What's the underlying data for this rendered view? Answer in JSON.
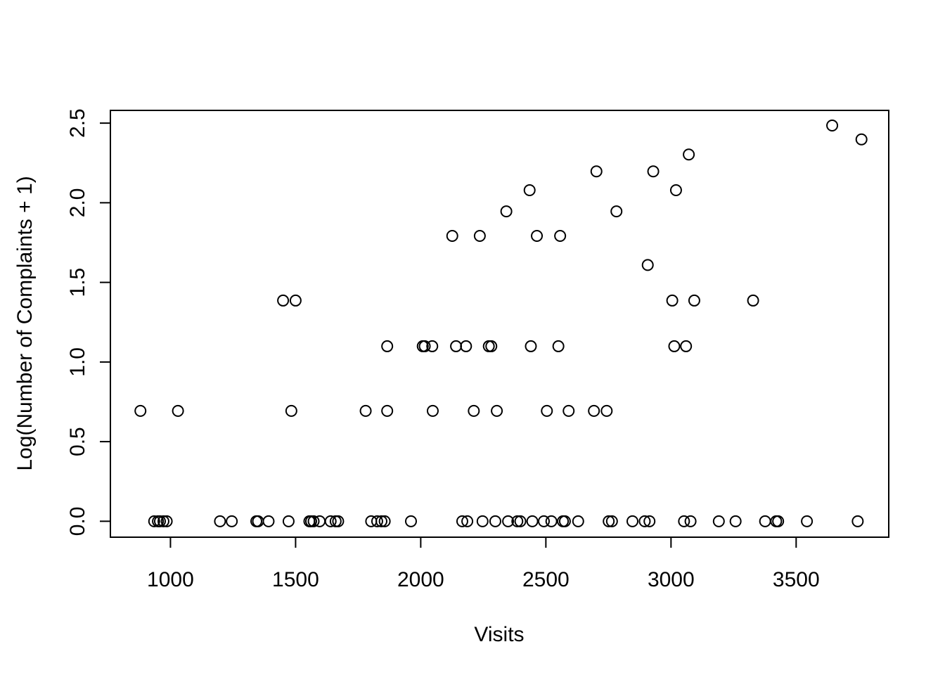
{
  "chart_data": {
    "type": "scatter",
    "title": "",
    "xlabel": "Visits",
    "ylabel": "Log(Number of Complaints + 1)",
    "xlim": [
      760,
      3870
    ],
    "ylim": [
      -0.1,
      2.58
    ],
    "xticks": [
      1000,
      1500,
      2000,
      2500,
      3000,
      3500
    ],
    "yticks": [
      0.0,
      0.5,
      1.0,
      1.5,
      2.0,
      2.5
    ],
    "xtick_labels": [
      "1000",
      "1500",
      "2000",
      "2500",
      "3000",
      "3500"
    ],
    "ytick_labels": [
      "0.0",
      "0.5",
      "1.0",
      "1.5",
      "2.0",
      "2.5"
    ],
    "marker": "open-circle",
    "color": "#000000",
    "grid": false,
    "legend": "none",
    "points": [
      {
        "x": 880,
        "y": 0.693
      },
      {
        "x": 1030,
        "y": 0.693
      },
      {
        "x": 1483,
        "y": 0.693
      },
      {
        "x": 1780,
        "y": 0.693
      },
      {
        "x": 1866,
        "y": 0.693
      },
      {
        "x": 2048,
        "y": 0.693
      },
      {
        "x": 2212,
        "y": 0.693
      },
      {
        "x": 2304,
        "y": 0.693
      },
      {
        "x": 2504,
        "y": 0.693
      },
      {
        "x": 2591,
        "y": 0.693
      },
      {
        "x": 2692,
        "y": 0.693
      },
      {
        "x": 2743,
        "y": 0.693
      },
      {
        "x": 1450,
        "y": 1.386
      },
      {
        "x": 1500,
        "y": 1.386
      },
      {
        "x": 3005,
        "y": 1.386
      },
      {
        "x": 3093,
        "y": 1.386
      },
      {
        "x": 3328,
        "y": 1.386
      },
      {
        "x": 1866,
        "y": 1.099
      },
      {
        "x": 2008,
        "y": 1.099
      },
      {
        "x": 2016,
        "y": 1.099
      },
      {
        "x": 2046,
        "y": 1.099
      },
      {
        "x": 2141,
        "y": 1.099
      },
      {
        "x": 2181,
        "y": 1.099
      },
      {
        "x": 2272,
        "y": 1.099
      },
      {
        "x": 2282,
        "y": 1.099
      },
      {
        "x": 2440,
        "y": 1.099
      },
      {
        "x": 2550,
        "y": 1.099
      },
      {
        "x": 3013,
        "y": 1.099
      },
      {
        "x": 3060,
        "y": 1.099
      },
      {
        "x": 2126,
        "y": 1.792
      },
      {
        "x": 2236,
        "y": 1.792
      },
      {
        "x": 2464,
        "y": 1.792
      },
      {
        "x": 2557,
        "y": 1.792
      },
      {
        "x": 2342,
        "y": 1.946
      },
      {
        "x": 2782,
        "y": 1.946
      },
      {
        "x": 2435,
        "y": 2.079
      },
      {
        "x": 3020,
        "y": 2.079
      },
      {
        "x": 2702,
        "y": 2.197
      },
      {
        "x": 2929,
        "y": 2.197
      },
      {
        "x": 2907,
        "y": 1.609
      },
      {
        "x": 3071,
        "y": 2.303
      },
      {
        "x": 3644,
        "y": 2.485
      },
      {
        "x": 3761,
        "y": 2.398
      },
      {
        "x": 935,
        "y": 0
      },
      {
        "x": 950,
        "y": 0
      },
      {
        "x": 958,
        "y": 0
      },
      {
        "x": 972,
        "y": 0
      },
      {
        "x": 985,
        "y": 0
      },
      {
        "x": 1198,
        "y": 0
      },
      {
        "x": 1245,
        "y": 0
      },
      {
        "x": 1343,
        "y": 0
      },
      {
        "x": 1350,
        "y": 0
      },
      {
        "x": 1392,
        "y": 0
      },
      {
        "x": 1472,
        "y": 0
      },
      {
        "x": 1555,
        "y": 0
      },
      {
        "x": 1562,
        "y": 0
      },
      {
        "x": 1572,
        "y": 0
      },
      {
        "x": 1596,
        "y": 0
      },
      {
        "x": 1640,
        "y": 0
      },
      {
        "x": 1660,
        "y": 0
      },
      {
        "x": 1670,
        "y": 0
      },
      {
        "x": 1802,
        "y": 0
      },
      {
        "x": 1826,
        "y": 0
      },
      {
        "x": 1843,
        "y": 0
      },
      {
        "x": 1856,
        "y": 0
      },
      {
        "x": 1961,
        "y": 0
      },
      {
        "x": 2166,
        "y": 0
      },
      {
        "x": 2186,
        "y": 0
      },
      {
        "x": 2247,
        "y": 0
      },
      {
        "x": 2298,
        "y": 0
      },
      {
        "x": 2349,
        "y": 0
      },
      {
        "x": 2386,
        "y": 0
      },
      {
        "x": 2398,
        "y": 0
      },
      {
        "x": 2446,
        "y": 0
      },
      {
        "x": 2492,
        "y": 0
      },
      {
        "x": 2522,
        "y": 0
      },
      {
        "x": 2568,
        "y": 0
      },
      {
        "x": 2576,
        "y": 0
      },
      {
        "x": 2629,
        "y": 0
      },
      {
        "x": 2751,
        "y": 0
      },
      {
        "x": 2764,
        "y": 0
      },
      {
        "x": 2846,
        "y": 0
      },
      {
        "x": 2895,
        "y": 0
      },
      {
        "x": 2914,
        "y": 0
      },
      {
        "x": 3052,
        "y": 0
      },
      {
        "x": 3078,
        "y": 0
      },
      {
        "x": 3191,
        "y": 0
      },
      {
        "x": 3258,
        "y": 0
      },
      {
        "x": 3376,
        "y": 0
      },
      {
        "x": 3420,
        "y": 0
      },
      {
        "x": 3428,
        "y": 0
      },
      {
        "x": 3543,
        "y": 0
      },
      {
        "x": 3746,
        "y": 0
      }
    ]
  }
}
